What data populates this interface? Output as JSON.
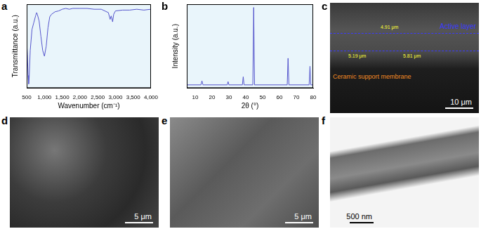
{
  "chart_data": [
    {
      "panel": "a",
      "type": "line",
      "xlabel": "Wavenumber (cm⁻¹)",
      "ylabel": "Transmittance (a.u.)",
      "x": [
        500,
        520,
        540,
        555,
        570,
        600,
        650,
        700,
        750,
        780,
        800,
        850,
        900,
        950,
        1000,
        1050,
        1100,
        1150,
        1200,
        1300,
        1400,
        1500,
        1600,
        1700,
        1800,
        2000,
        2200,
        2400,
        2600,
        2800,
        2850,
        2880,
        2920,
        2950,
        3000,
        3200,
        3400,
        3600,
        3800,
        4000
      ],
      "values": [
        55,
        40,
        15,
        5,
        12,
        45,
        70,
        78,
        86,
        90,
        88,
        80,
        62,
        45,
        38,
        50,
        72,
        85,
        88,
        91,
        92,
        94,
        95,
        94,
        95,
        95,
        95,
        94,
        94,
        90,
        82,
        86,
        79,
        88,
        92,
        93,
        93,
        94,
        93,
        94
      ],
      "color": "#5555cc",
      "xlim": [
        500,
        4000
      ],
      "xticks": [
        500,
        1000,
        1500,
        2000,
        2500,
        3000,
        3500,
        4000
      ],
      "ylim": [
        0,
        100
      ],
      "grid": false,
      "tick_labels": "x"
    },
    {
      "panel": "b",
      "type": "line",
      "xlabel": "2θ (°)",
      "ylabel": "Intensity (a.u.)",
      "x": [
        5,
        13.4,
        14,
        14.6,
        29,
        29.5,
        30,
        38,
        38.5,
        39,
        44.2,
        44.7,
        45.2,
        64.6,
        65.1,
        65.6,
        77.6,
        78.1,
        78.6,
        80
      ],
      "values": [
        4,
        4,
        9,
        4,
        4,
        8,
        4,
        4,
        14,
        4,
        4,
        100,
        4,
        4,
        37,
        4,
        4,
        27,
        4,
        4
      ],
      "color": "#5555cc",
      "xlim": [
        5,
        80
      ],
      "xticks": [
        10,
        20,
        30,
        40,
        50,
        60,
        70,
        80
      ],
      "ylim": [
        0,
        104
      ],
      "grid": false,
      "tick_labels": "x"
    }
  ],
  "images": [
    {
      "panel": "c",
      "active_layer": "Active layer",
      "support": "Ceramic support membrane",
      "thicknesses": [
        "4.91 μm",
        "5.19 μm",
        "5.81 μm"
      ],
      "scale_bar": "10 μm"
    },
    {
      "panel": "d",
      "scale_bar": "5 μm"
    },
    {
      "panel": "e",
      "scale_bar": "5 μm"
    },
    {
      "panel": "f",
      "scale_bar": "500 nm"
    }
  ]
}
